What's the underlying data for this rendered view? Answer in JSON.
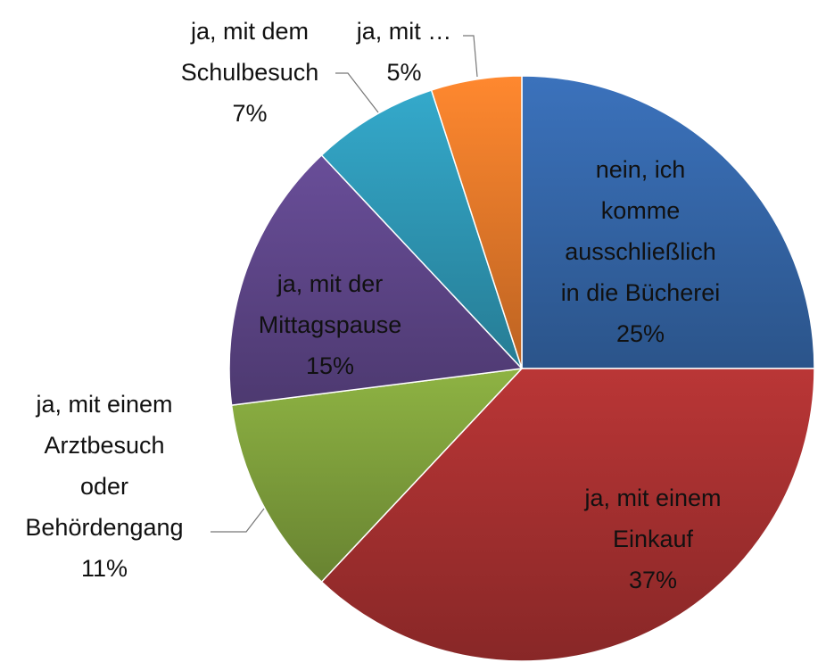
{
  "chart_data": {
    "type": "pie",
    "title": "",
    "slices": [
      {
        "label_lines": [
          "nein, ich",
          "komme",
          "ausschließlich",
          "in die Bücherei"
        ],
        "pct_label": "25%",
        "value": 25,
        "color": "#3566A8"
      },
      {
        "label_lines": [
          "ja, mit einem",
          "Einkauf"
        ],
        "pct_label": "37%",
        "value": 37,
        "color": "#A63030"
      },
      {
        "label_lines": [
          "ja, mit einem",
          "Arztbesuch",
          "oder",
          "Behördengang"
        ],
        "pct_label": "11%",
        "value": 11,
        "color": "#7FA03C"
      },
      {
        "label_lines": [
          "ja, mit der",
          "Mittagspause"
        ],
        "pct_label": "15%",
        "value": 15,
        "color": "#5E4689"
      },
      {
        "label_lines": [
          "ja, mit dem",
          "Schulbesuch"
        ],
        "pct_label": "7%",
        "value": 7,
        "color": "#2E97B5"
      },
      {
        "label_lines": [
          "ja, mit …"
        ],
        "pct_label": "5%",
        "value": 5,
        "color": "#E5792A"
      }
    ],
    "legend": "none"
  }
}
